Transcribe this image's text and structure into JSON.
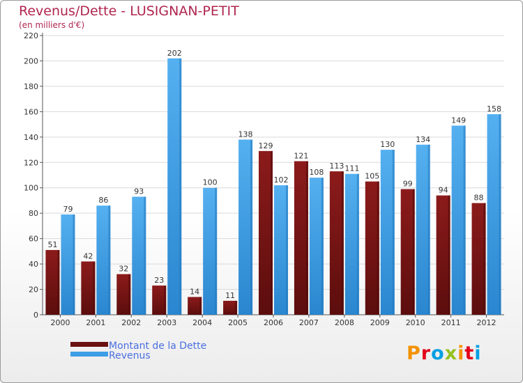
{
  "header": {
    "title": "Revenus/Dette - LUSIGNAN-PETIT",
    "subtitle": "(en milliers d'€)"
  },
  "logo": {
    "text": "Proxiti",
    "colors": [
      "#f39200",
      "#e2001a",
      "#009fe3",
      "#95c11f",
      "#f39200",
      "#e2001a",
      "#009fe3"
    ]
  },
  "chart_data": {
    "type": "bar",
    "title": "Revenus/Dette - LUSIGNAN-PETIT",
    "ylabel": "(en milliers d'€)",
    "xlabel": "",
    "ylim": [
      0,
      220
    ],
    "yticks": [
      0,
      20,
      40,
      60,
      80,
      100,
      120,
      140,
      160,
      180,
      200,
      220
    ],
    "grid": true,
    "legend_position": "bottom-left",
    "categories": [
      "2000",
      "2001",
      "2002",
      "2003",
      "2004",
      "2005",
      "2006",
      "2007",
      "2008",
      "2009",
      "2010",
      "2011",
      "2012"
    ],
    "series": [
      {
        "name": "Montant de la Dette",
        "color": "#7a1616",
        "color_light": "#a32a2a",
        "values": [
          51,
          42,
          32,
          23,
          14,
          11,
          129,
          121,
          113,
          105,
          99,
          94,
          88
        ]
      },
      {
        "name": "Revenus",
        "color": "#3d9ee6",
        "color_light": "#5db4f0",
        "values": [
          79,
          86,
          93,
          202,
          100,
          138,
          102,
          108,
          111,
          130,
          134,
          149,
          158
        ]
      }
    ]
  }
}
